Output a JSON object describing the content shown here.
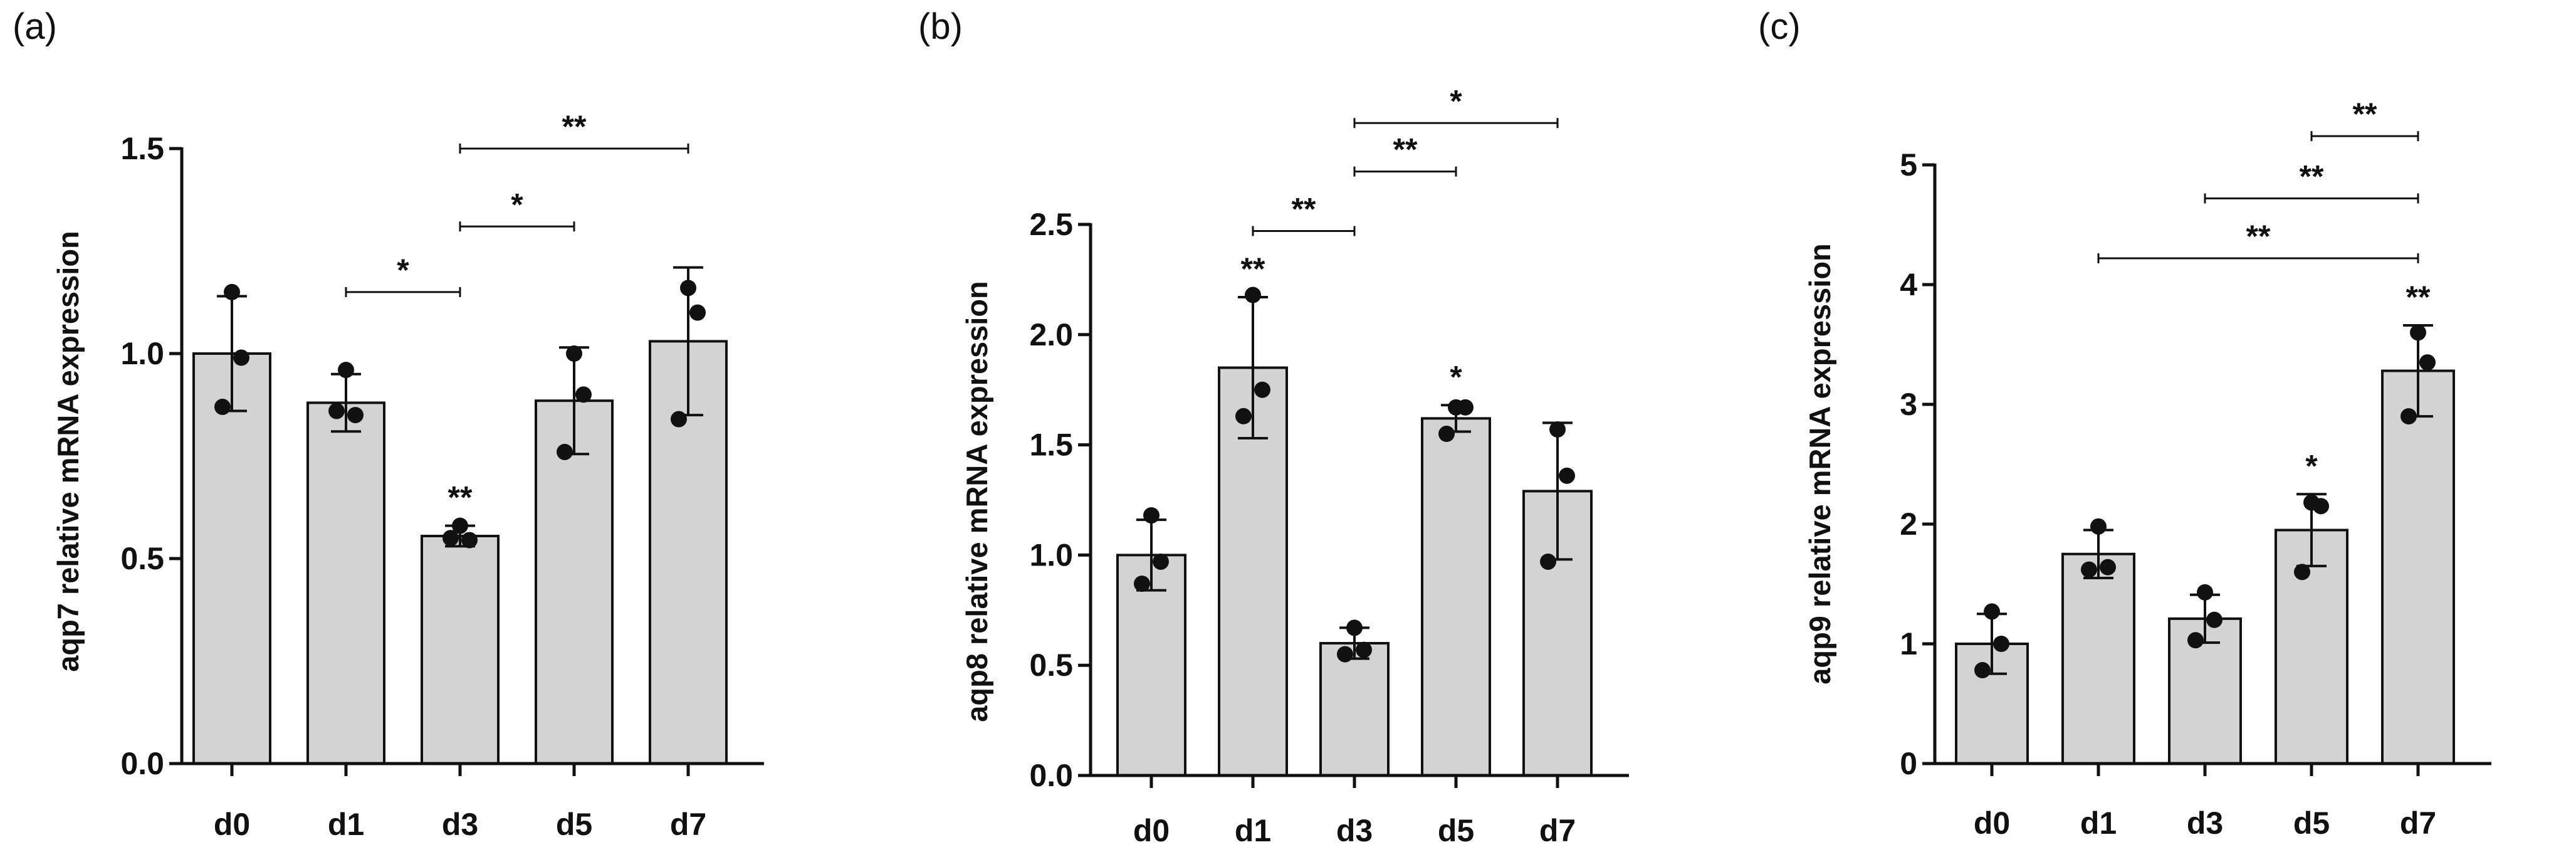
{
  "chart_data": [
    {
      "type": "bar",
      "panel": "(a)",
      "categories": [
        "d0",
        "d1",
        "d3",
        "d5",
        "d7"
      ],
      "means": [
        1.0,
        0.88,
        0.555,
        0.885,
        1.03
      ],
      "sd": [
        0.14,
        0.07,
        0.025,
        0.13,
        0.18
      ],
      "points": [
        [
          1.15,
          0.87,
          0.99
        ],
        [
          0.96,
          0.86,
          0.85
        ],
        [
          0.58,
          0.55,
          0.545
        ],
        [
          1.0,
          0.76,
          0.9
        ],
        [
          1.16,
          0.84,
          1.1
        ]
      ],
      "ylabel": "aqp7 relative mRNA expression",
      "ylim": [
        0,
        1.5
      ],
      "yticks": [
        0,
        0.5,
        1.0,
        1.5
      ],
      "ytick_labels": [
        "0.0",
        "0.5",
        "1.0",
        "1.5"
      ],
      "bar_stars": [
        "",
        "",
        "**",
        "",
        ""
      ],
      "brackets": [
        {
          "from": "d1",
          "to": "d3",
          "y": 1.15,
          "label": "*"
        },
        {
          "from": "d3",
          "to": "d5",
          "y": 1.31,
          "label": "*"
        },
        {
          "from": "d3",
          "to": "d7",
          "y": 1.5,
          "label": "**"
        }
      ]
    },
    {
      "type": "bar",
      "panel": "(b)",
      "categories": [
        "d0",
        "d1",
        "d3",
        "d5",
        "d7"
      ],
      "means": [
        1.0,
        1.85,
        0.6,
        1.62,
        1.29
      ],
      "sd": [
        0.16,
        0.32,
        0.07,
        0.06,
        0.31
      ],
      "points": [
        [
          1.18,
          0.87,
          0.97
        ],
        [
          2.18,
          1.63,
          1.75
        ],
        [
          0.67,
          0.55,
          0.57
        ],
        [
          1.67,
          1.55,
          1.67
        ],
        [
          1.57,
          0.97,
          1.36
        ]
      ],
      "ylabel": "aqp8 relative mRNA expression",
      "ylim": [
        0,
        2.5
      ],
      "yticks": [
        0,
        0.5,
        1.0,
        1.5,
        2.0,
        2.5
      ],
      "ytick_labels": [
        "0.0",
        "0.5",
        "1.0",
        "1.5",
        "2.0",
        "2.5"
      ],
      "bar_stars": [
        "",
        "**",
        "",
        "*",
        ""
      ],
      "brackets": [
        {
          "from": "d1",
          "to": "d3",
          "y": 2.47,
          "label": "**"
        },
        {
          "from": "d3",
          "to": "d5",
          "y": 2.74,
          "label": "**"
        },
        {
          "from": "d3",
          "to": "d7",
          "y": 2.96,
          "label": "*"
        }
      ]
    },
    {
      "type": "bar",
      "panel": "(c)",
      "categories": [
        "d0",
        "d1",
        "d3",
        "d5",
        "d7"
      ],
      "means": [
        1.0,
        1.75,
        1.21,
        1.95,
        3.28
      ],
      "sd": [
        0.25,
        0.2,
        0.2,
        0.3,
        0.38
      ],
      "points": [
        [
          1.27,
          0.78,
          1.0
        ],
        [
          1.98,
          1.62,
          1.64
        ],
        [
          1.43,
          1.03,
          1.2
        ],
        [
          2.18,
          1.6,
          2.15
        ],
        [
          3.6,
          2.9,
          3.35
        ]
      ],
      "ylabel": "aqp9 relative mRNA expression",
      "ylim": [
        0,
        5
      ],
      "yticks": [
        0,
        1,
        2,
        3,
        4,
        5
      ],
      "ytick_labels": [
        "0",
        "1",
        "2",
        "3",
        "4",
        "5"
      ],
      "bar_stars": [
        "",
        "",
        "",
        "*",
        "**"
      ],
      "brackets": [
        {
          "from": "d1",
          "to": "d7",
          "y": 4.22,
          "label": "**"
        },
        {
          "from": "d3",
          "to": "d7",
          "y": 4.72,
          "label": "**"
        },
        {
          "from": "d5",
          "to": "d7",
          "y": 5.24,
          "label": "**"
        }
      ]
    }
  ]
}
